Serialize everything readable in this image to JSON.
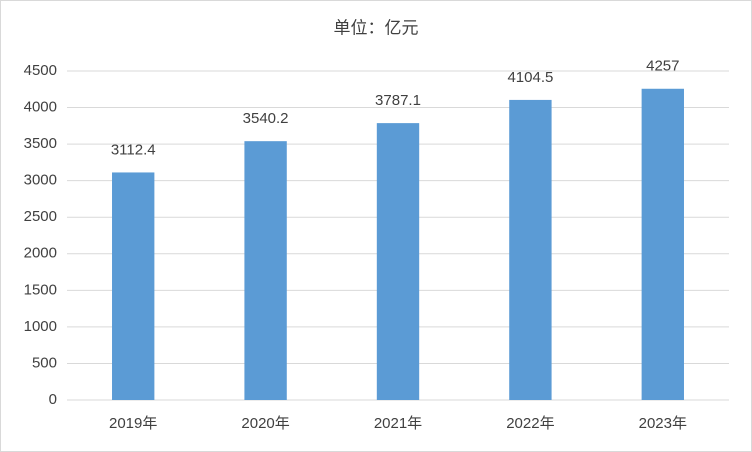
{
  "chart_data": {
    "type": "bar",
    "title": "单位：亿元",
    "categories": [
      "2019年",
      "2020年",
      "2021年",
      "2022年",
      "2023年"
    ],
    "values": [
      3112.4,
      3540.2,
      3787.1,
      4104.5,
      4257
    ],
    "color": "#5b9bd5",
    "ylim": [
      0,
      4500
    ],
    "yticks": [
      0,
      500,
      1000,
      1500,
      2000,
      2500,
      3000,
      3500,
      4000,
      4500
    ],
    "grid": true
  }
}
